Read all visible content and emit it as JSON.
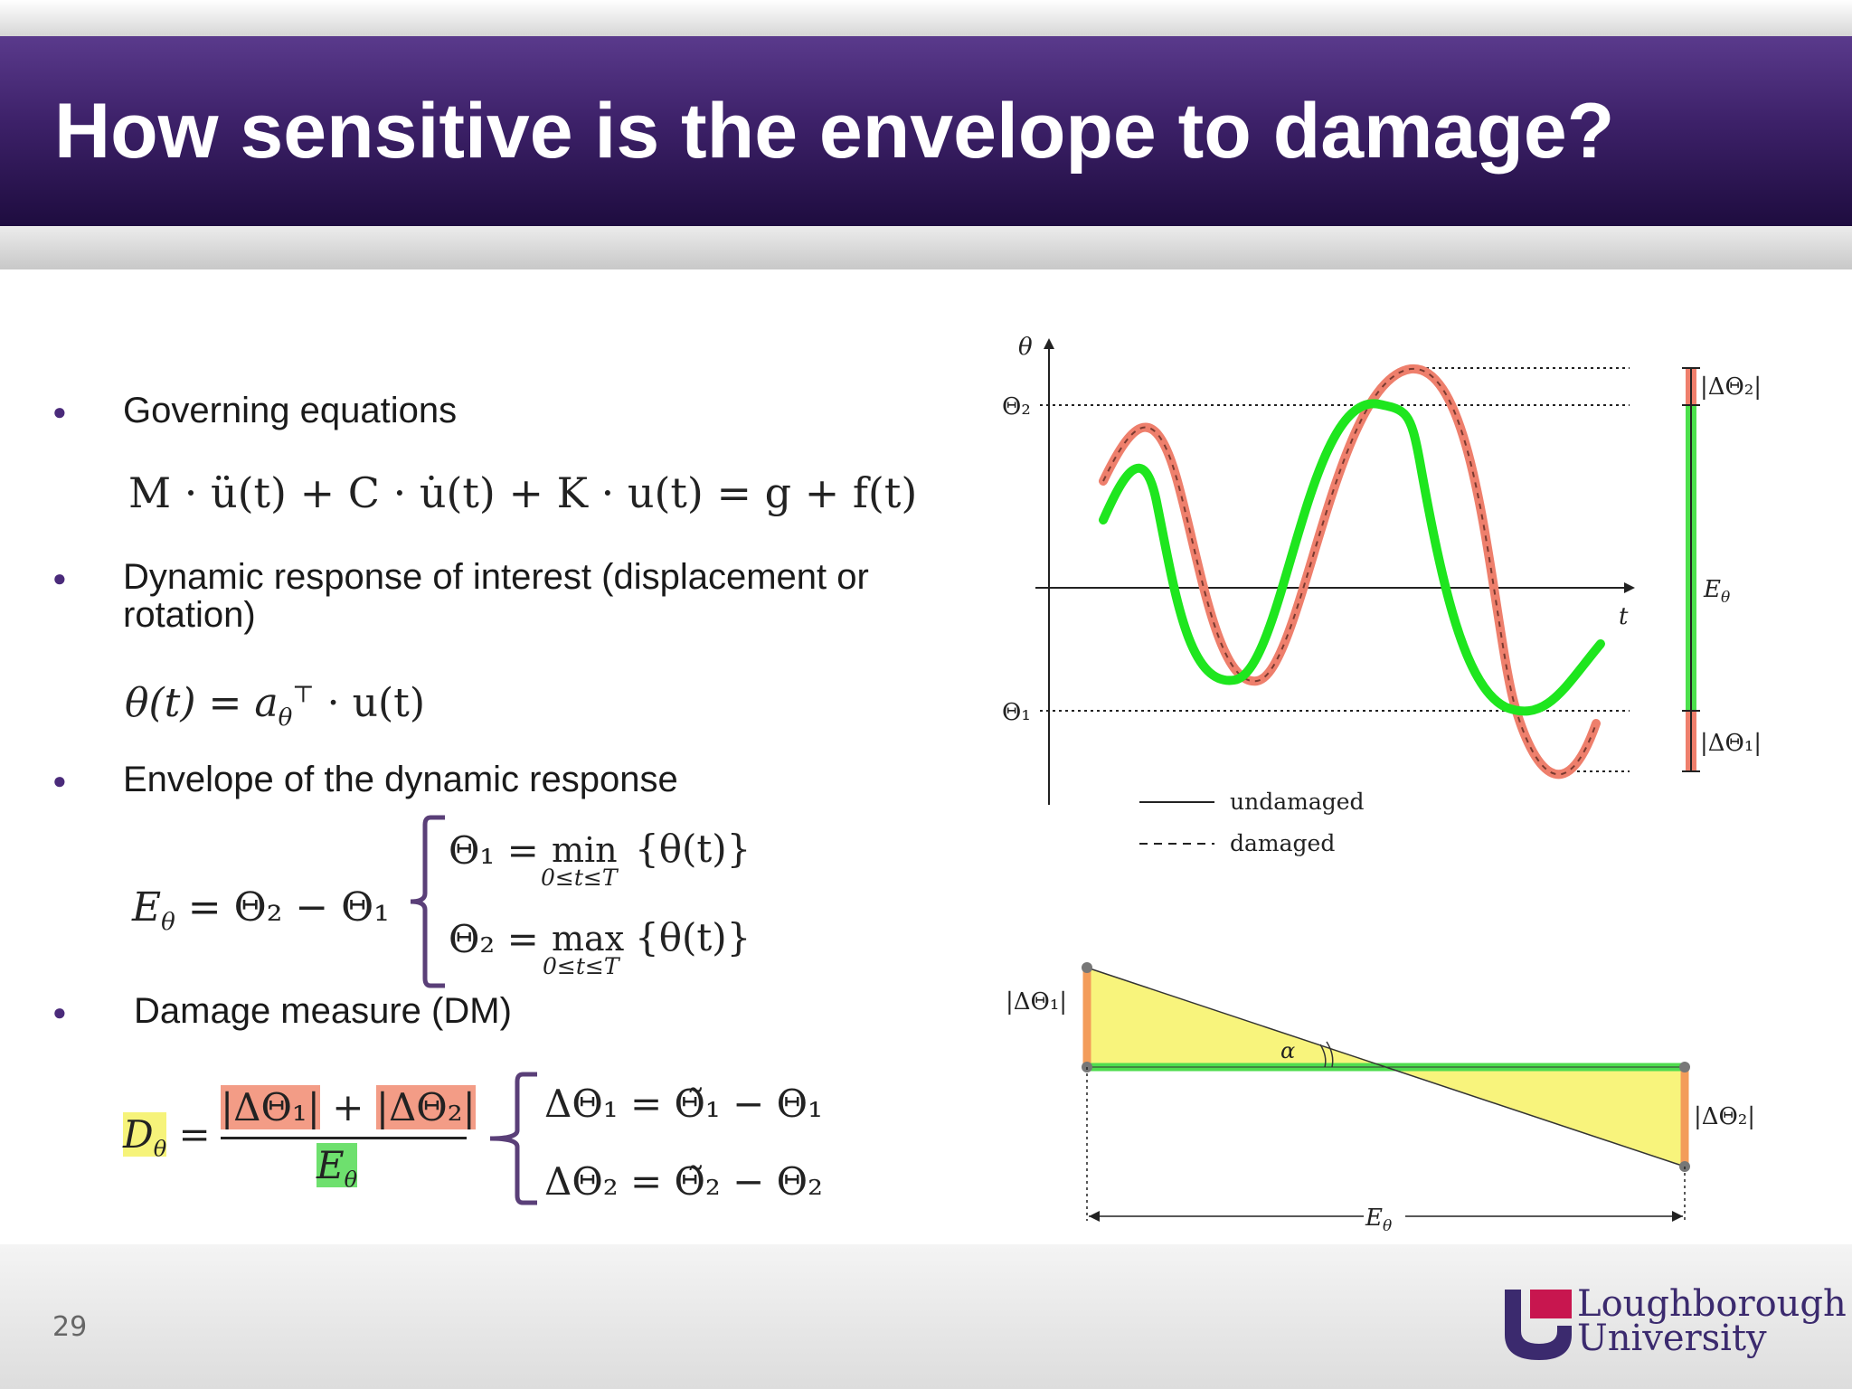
{
  "slide": {
    "title": "How sensitive is the envelope to damage?",
    "page_number": "29"
  },
  "bullets": [
    {
      "text": "Governing equations"
    },
    {
      "text": "Dynamic response of interest (displacement or rotation)"
    },
    {
      "text": "Envelope of the dynamic response"
    },
    {
      "text": "Damage measure (DM)"
    }
  ],
  "equations": {
    "governing": "M · ü(t) + C · u̇(t) + K · u(t) = g + f(t)",
    "response": "θ(t) = a",
    "response_sub": "θ",
    "response_sup": "⊤",
    "response_tail": " · u(t)",
    "envelope_lhs": "E",
    "envelope_lhs_sub": "θ",
    "envelope_rhs": " = Θ₂ − Θ₁",
    "theta1": "Θ₁ =",
    "min_op": "min",
    "max_op": "max",
    "range": "0≤t≤T",
    "set": "{θ(t)}",
    "theta2": "Θ₂ =",
    "dm_lhs": "D",
    "dm_lhs_sub": "θ",
    "dm_eq": "=",
    "dm_num1": "|ΔΘ₁|",
    "dm_plus": "+",
    "dm_num2": "|ΔΘ₂|",
    "dm_den": "E",
    "dm_den_sub": "θ",
    "delta1": "ΔΘ₁ = Θ̃₁ − Θ₁",
    "delta2": "ΔΘ₂ = Θ̃₂ − Θ₂"
  },
  "top_figure": {
    "y_axis_label": "θ",
    "x_axis_label": "t",
    "theta2_label": "Θ₂",
    "theta1_label": "Θ₁",
    "delta2_label": "|ΔΘ₂|",
    "delta1_label": "|ΔΘ₁|",
    "envelope_label": "E",
    "envelope_label_sub": "θ",
    "legend": [
      {
        "label": "undamaged",
        "style": "solid"
      },
      {
        "label": "damaged",
        "style": "dashed"
      }
    ],
    "colors": {
      "undamaged": "#1ee61e",
      "damaged": "#ee7f6c"
    }
  },
  "bottom_figure": {
    "left_label": "|ΔΘ₁|",
    "right_label": "|ΔΘ₂|",
    "angle_label": "α",
    "width_label": "E",
    "width_label_sub": "θ",
    "colors": {
      "fill": "#f7f36e",
      "base": "#4fdc4f",
      "sides": "#f39c5a"
    }
  },
  "logo": {
    "line1": "Loughborough",
    "line2": "University",
    "colors": {
      "purple": "#3b2a6e",
      "magenta": "#c8164f"
    }
  }
}
